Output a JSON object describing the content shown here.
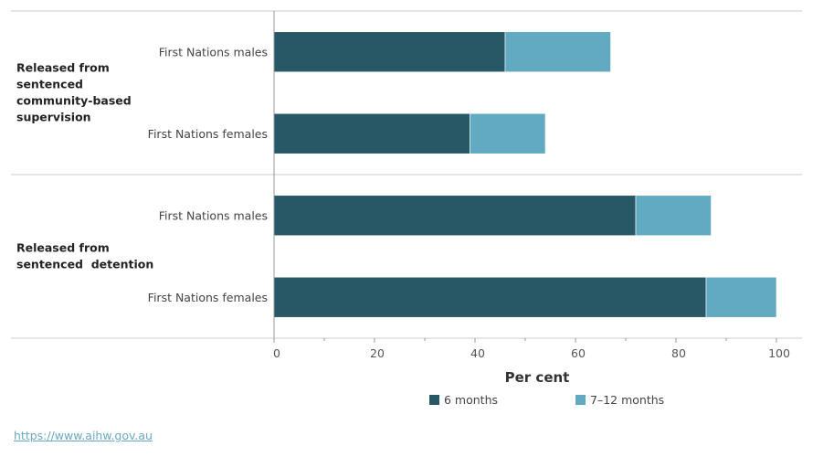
{
  "chart_data": {
    "type": "bar",
    "orientation": "horizontal",
    "stacked": true,
    "groups": [
      {
        "label_lines": [
          "Released from",
          "sentenced",
          "community-based",
          "supervision"
        ],
        "rows": [
          {
            "label": "First Nations males",
            "values": [
              46,
              21
            ]
          },
          {
            "label": "First Nations females",
            "values": [
              39,
              15
            ]
          }
        ]
      },
      {
        "label_lines": [
          "Released from",
          "sentenced  detention"
        ],
        "rows": [
          {
            "label": "First Nations males",
            "values": [
              72,
              15
            ]
          },
          {
            "label": "First Nations females",
            "values": [
              86,
              14
            ]
          }
        ]
      }
    ],
    "series": [
      {
        "name": "6 months",
        "color": "#285866"
      },
      {
        "name": "7–12 months",
        "color": "#62aac1"
      }
    ],
    "xlabel": "Per cent",
    "xlim": [
      0,
      100
    ],
    "xticks": [
      0,
      20,
      40,
      60,
      80,
      100
    ],
    "legend_position": "bottom"
  },
  "source": {
    "text": "https://www.aihw.gov.au"
  }
}
